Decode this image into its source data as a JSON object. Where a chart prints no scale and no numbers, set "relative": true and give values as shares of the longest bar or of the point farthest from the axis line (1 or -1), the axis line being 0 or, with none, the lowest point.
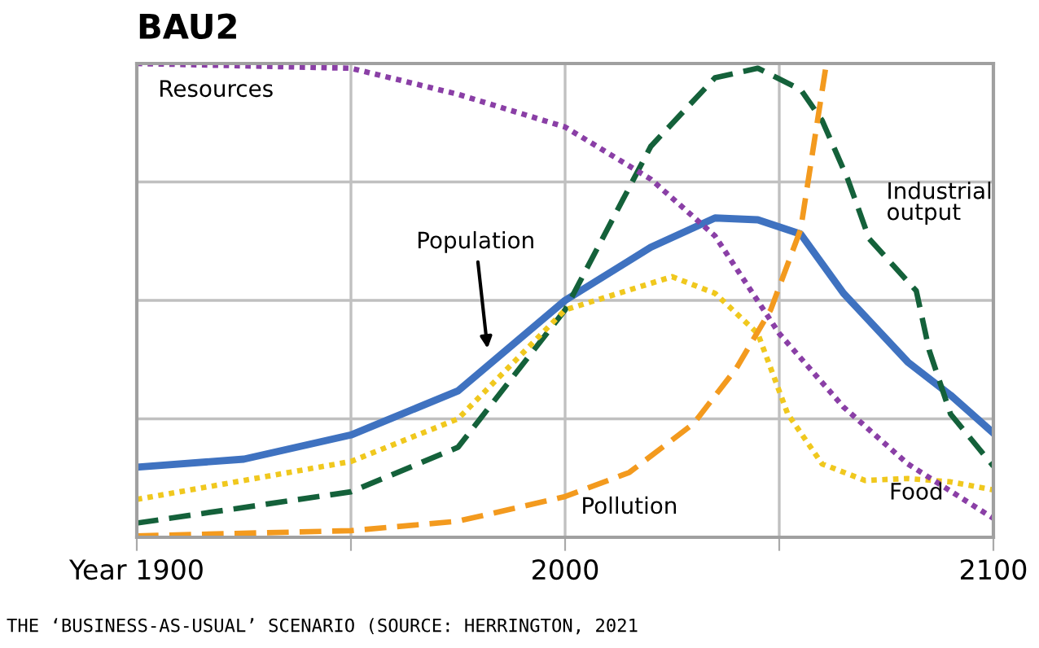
{
  "chart_data": {
    "type": "line",
    "title": "BAU2",
    "relative": true,
    "grid": true,
    "legend": false,
    "tick_labels": "x",
    "xlim": [
      1900,
      2100
    ],
    "xticks": [
      {
        "value": 1900,
        "label": "Year 1900"
      },
      {
        "value": 1950,
        "label": null
      },
      2000,
      {
        "value": 2050,
        "label": null
      },
      2100
    ],
    "series": [
      {
        "name": "Population",
        "color": "#3f72c0",
        "line_style": "solid",
        "x": [
          1900,
          1925,
          1950,
          1975,
          2000,
          2020,
          2035,
          2045,
          2055,
          2065,
          2080,
          2090,
          2100
        ],
        "values": [
          0.148,
          0.165,
          0.216,
          0.309,
          0.5,
          0.612,
          0.674,
          0.67,
          0.64,
          0.515,
          0.37,
          0.3,
          0.22
        ]
      },
      {
        "name": "Industrial output",
        "color": "#14613a",
        "line_style": "dashed",
        "x": [
          1900,
          1950,
          1975,
          2000,
          2020,
          2035,
          2045,
          2055,
          2060,
          2066,
          2071,
          2077,
          2082,
          2085,
          2090,
          2100
        ],
        "values": [
          0.03,
          0.096,
          0.19,
          0.48,
          0.825,
          0.97,
          0.99,
          0.945,
          0.88,
          0.756,
          0.63,
          0.57,
          0.52,
          0.395,
          0.26,
          0.15
        ]
      },
      {
        "name": "Food",
        "color": "#f0c81e",
        "line_style": "dotted",
        "x": [
          1900,
          1950,
          1975,
          2000,
          2025,
          2035,
          2045,
          2052,
          2060,
          2070,
          2080,
          2090,
          2100
        ],
        "values": [
          0.08,
          0.16,
          0.25,
          0.48,
          0.55,
          0.515,
          0.43,
          0.26,
          0.155,
          0.12,
          0.124,
          0.117,
          0.1
        ]
      },
      {
        "name": "Pollution",
        "color": "#f39a1e",
        "line_style": "dashed",
        "x": [
          1900,
          1950,
          1975,
          2000,
          2015,
          2030,
          2040,
          2048,
          2055,
          2061
        ],
        "values": [
          0.003,
          0.014,
          0.034,
          0.086,
          0.137,
          0.24,
          0.357,
          0.48,
          0.65,
          1.0
        ]
      },
      {
        "name": "Resources",
        "color": "#8a3fa6",
        "line_style": "dotted",
        "x": [
          1900,
          1950,
          1975,
          2000,
          2020,
          2035,
          2050,
          2065,
          2080,
          2100
        ],
        "values": [
          1.0,
          0.99,
          0.935,
          0.866,
          0.756,
          0.636,
          0.43,
          0.275,
          0.155,
          0.04
        ]
      }
    ],
    "annotations": [
      "THE ‘BUSINESS-AS-USUAL’ SCENARIO (SOURCE: HERRINGTON, 2021"
    ]
  }
}
